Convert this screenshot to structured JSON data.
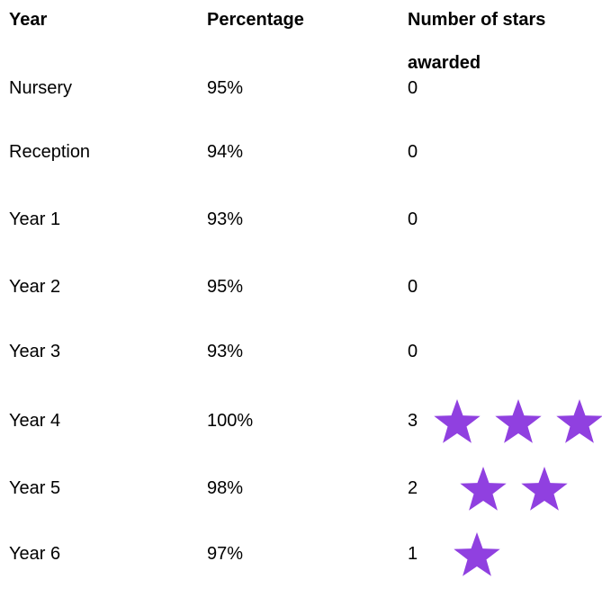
{
  "table": {
    "header": [
      "Year",
      "Percentage",
      "Number of stars awarded"
    ],
    "rows": [
      [
        "Nursery",
        "95%",
        0
      ],
      [
        "Reception",
        "94%",
        0
      ],
      [
        "Year 1",
        "93%",
        0
      ],
      [
        "Year 2",
        "95%",
        0
      ],
      [
        "Year 3",
        "93%",
        0
      ],
      [
        "Year 4",
        "100%",
        3
      ],
      [
        "Year 5",
        "98%",
        2
      ],
      [
        "Year 6",
        "97%",
        1
      ]
    ]
  }
}
